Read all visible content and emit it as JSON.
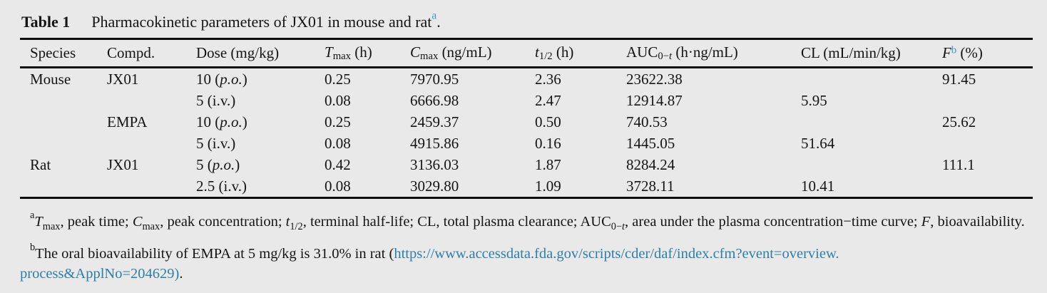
{
  "page": {
    "background_color": "#e9e9e9",
    "text_color": "#141414",
    "accent_blue_superscript": "#3e9ec0",
    "link_color": "#2e7ea8"
  },
  "caption": {
    "label": "Table 1",
    "title": [
      {
        "t": "Pharmacokinetic parameters of JX01 in mouse and rat"
      },
      {
        "t": "a",
        "s": "supb"
      },
      {
        "t": "."
      }
    ]
  },
  "table": {
    "headers": {
      "species": [
        {
          "t": "Species"
        }
      ],
      "compd": [
        {
          "t": "Compd."
        }
      ],
      "dose": [
        {
          "t": "Dose (mg/kg)"
        }
      ],
      "tmax": [
        {
          "t": "T",
          "s": "i"
        },
        {
          "t": "max",
          "s": "sub"
        },
        {
          "t": " (h)"
        }
      ],
      "cmax": [
        {
          "t": "C",
          "s": "i"
        },
        {
          "t": "max",
          "s": "sub"
        },
        {
          "t": " (ng/mL)"
        }
      ],
      "thalf": [
        {
          "t": "t",
          "s": "i"
        },
        {
          "t": "1/2",
          "s": "sub"
        },
        {
          "t": " (h)"
        }
      ],
      "auc": [
        {
          "t": "AUC"
        },
        {
          "t": "0−",
          "s": "sub"
        },
        {
          "t": "t",
          "s": "subi"
        },
        {
          "t": " (h·ng/mL)"
        }
      ],
      "cl": [
        {
          "t": "CL (mL/min/kg)"
        }
      ],
      "f": [
        {
          "t": "F",
          "s": "i"
        },
        {
          "t": "b",
          "s": "supb"
        },
        {
          "t": " (%)"
        }
      ]
    },
    "rows": [
      {
        "species": "Mouse",
        "compd": "JX01",
        "dose": [
          {
            "t": "10 ("
          },
          {
            "t": "p.o.",
            "s": "i"
          },
          {
            "t": ")"
          }
        ],
        "tmax": "0.25",
        "cmax": "7970.95",
        "thalf": "2.36",
        "auc": "23622.38",
        "cl": "",
        "f": "91.45"
      },
      {
        "species": "",
        "compd": "",
        "dose": [
          {
            "t": "5 (i.v.)"
          }
        ],
        "tmax": "0.08",
        "cmax": "6666.98",
        "thalf": "2.47",
        "auc": "12914.87",
        "cl": "5.95",
        "f": ""
      },
      {
        "species": "",
        "compd": "EMPA",
        "dose": [
          {
            "t": "10 ("
          },
          {
            "t": "p.o.",
            "s": "i"
          },
          {
            "t": ")"
          }
        ],
        "tmax": "0.25",
        "cmax": "2459.37",
        "thalf": "0.50",
        "auc": "740.53",
        "cl": "",
        "f": "25.62"
      },
      {
        "species": "",
        "compd": "",
        "dose": [
          {
            "t": "5 (i.v.)"
          }
        ],
        "tmax": "0.08",
        "cmax": "4915.86",
        "thalf": "0.16",
        "auc": "1445.05",
        "cl": "51.64",
        "f": ""
      },
      {
        "species": "Rat",
        "compd": "JX01",
        "dose": [
          {
            "t": "5 ("
          },
          {
            "t": "p.o.",
            "s": "i"
          },
          {
            "t": ")"
          }
        ],
        "tmax": "0.42",
        "cmax": "3136.03",
        "thalf": "1.87",
        "auc": "8284.24",
        "cl": "",
        "f": "111.1"
      },
      {
        "species": "",
        "compd": "",
        "dose": [
          {
            "t": "2.5 (i.v.)"
          }
        ],
        "tmax": "0.08",
        "cmax": "3029.80",
        "thalf": "1.09",
        "auc": "3728.11",
        "cl": "10.41",
        "f": ""
      }
    ]
  },
  "footnotes": {
    "a": [
      {
        "t": "a",
        "s": "sup"
      },
      {
        "t": "T",
        "s": "i"
      },
      {
        "t": "max",
        "s": "sub"
      },
      {
        "t": ", peak time; "
      },
      {
        "t": "C",
        "s": "i"
      },
      {
        "t": "max",
        "s": "sub"
      },
      {
        "t": ", peak concentration; "
      },
      {
        "t": "t",
        "s": "i"
      },
      {
        "t": "1/2",
        "s": "sub"
      },
      {
        "t": ", terminal half-life; CL, total plasma clearance; AUC"
      },
      {
        "t": "0−",
        "s": "sub"
      },
      {
        "t": "t",
        "s": "subi"
      },
      {
        "t": ", area under the plasma concentration−time curve; "
      },
      {
        "t": "F",
        "s": "i"
      },
      {
        "t": ", bioavailability."
      }
    ],
    "b": [
      {
        "t": "b",
        "s": "sup"
      },
      {
        "t": "The oral bioavailability of EMPA at 5 mg/kg is 31.0% in rat ("
      },
      {
        "t": "https://www.accessdata.fda.gov/scripts/cder/daf/index.cfm?event=overview.",
        "s": "link"
      },
      {
        "s": "br"
      },
      {
        "t": "process&ApplNo=204629)",
        "s": "link"
      },
      {
        "t": "."
      }
    ]
  }
}
